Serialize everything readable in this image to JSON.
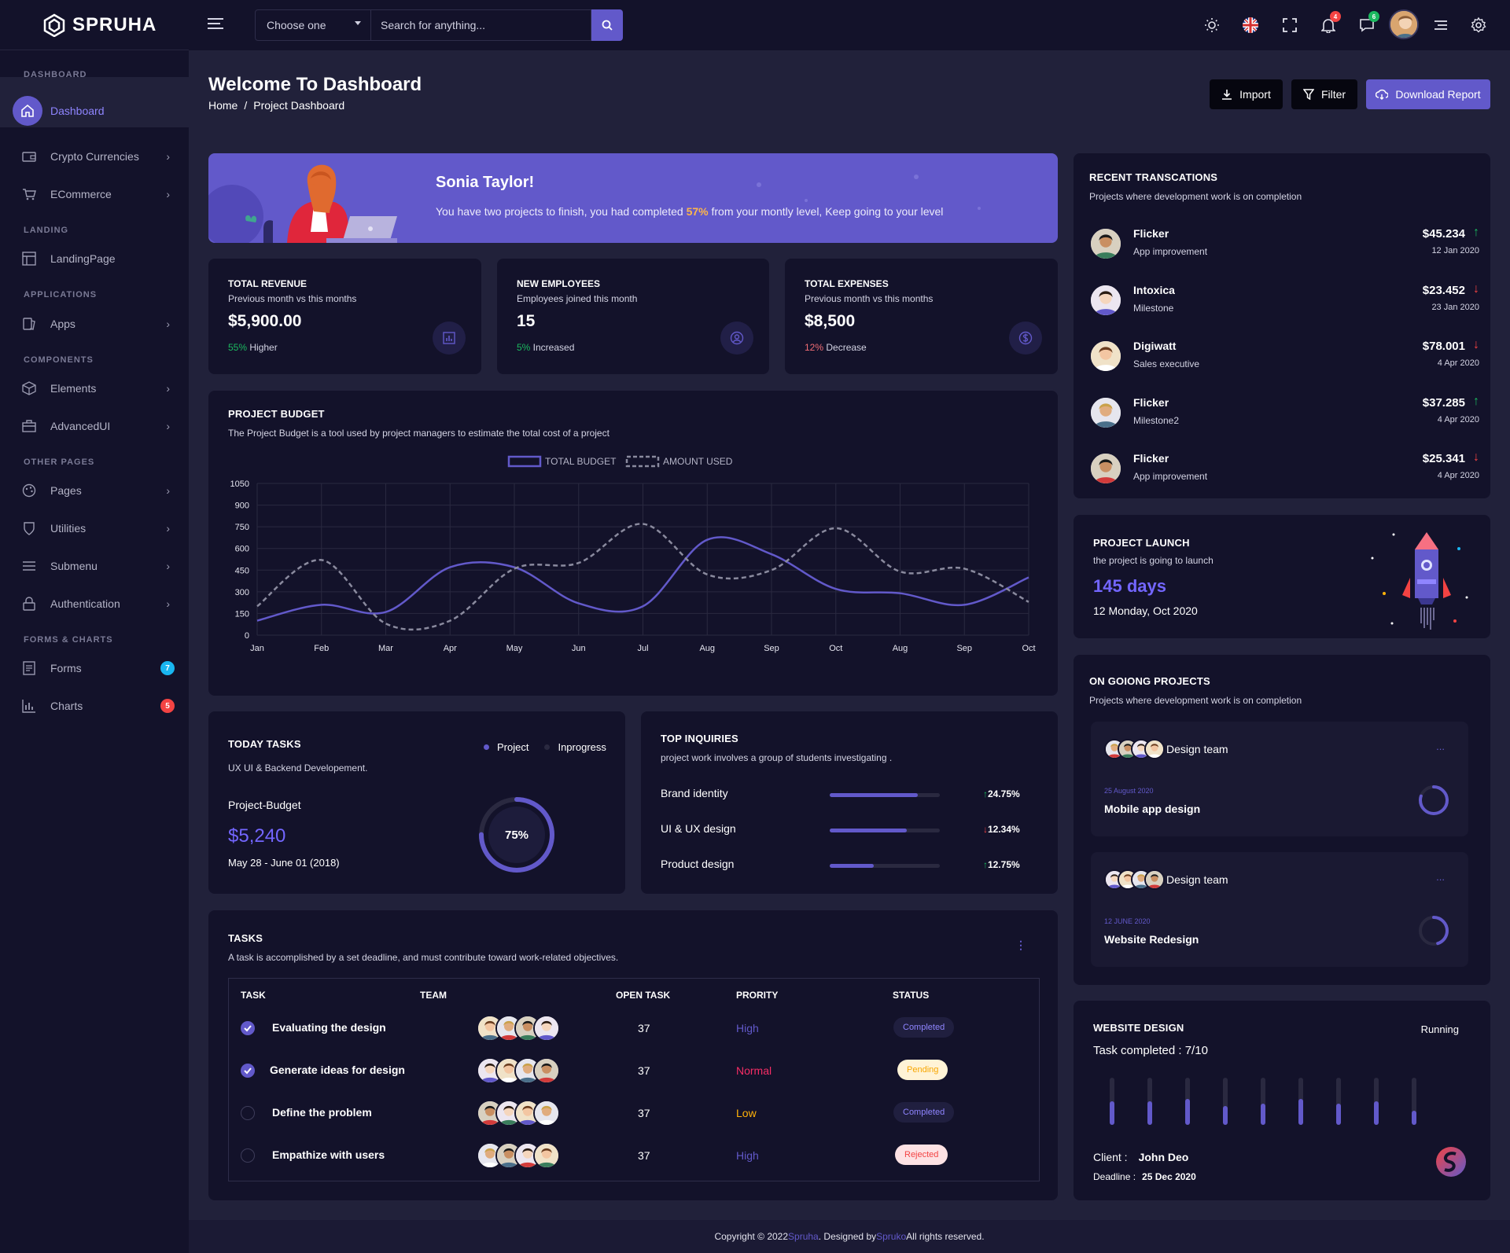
{
  "brand": {
    "name": "SPRUHA"
  },
  "sidebar": {
    "sections": [
      {
        "label": "DASHBOARD"
      },
      {
        "label": "LANDING"
      },
      {
        "label": "APPLICATIONS"
      },
      {
        "label": "COMPONENTS"
      },
      {
        "label": "OTHER PAGES"
      },
      {
        "label": "FORMS & CHARTS"
      }
    ],
    "active": "Dashboard",
    "items": [
      {
        "label": "Crypto Currencies",
        "icon": "wallet-icon"
      },
      {
        "label": "ECommerce",
        "icon": "cart-icon"
      },
      {
        "label": "LandingPage",
        "icon": "layout-icon"
      },
      {
        "label": "Apps",
        "icon": "apps-icon"
      },
      {
        "label": "Elements",
        "icon": "box-icon"
      },
      {
        "label": "AdvancedUI",
        "icon": "briefcase-icon"
      },
      {
        "label": "Pages",
        "icon": "palette-icon"
      },
      {
        "label": "Utilities",
        "icon": "shield-icon"
      },
      {
        "label": "Submenu",
        "icon": "menu-icon"
      },
      {
        "label": "Authentication",
        "icon": "lock-icon"
      },
      {
        "label": "Forms",
        "icon": "document-icon",
        "badge": "7"
      },
      {
        "label": "Charts",
        "icon": "chart-icon",
        "badge": "5"
      }
    ]
  },
  "topbar": {
    "select_label": "Choose one",
    "search_placeholder": "Search for anything...",
    "notification_count": "4",
    "message_count": "6"
  },
  "header": {
    "title": "Welcome To Dashboard",
    "breadcrumb_home": "Home",
    "breadcrumb_sep": "/",
    "breadcrumb_current": "Project Dashboard",
    "import_label": "Import",
    "filter_label": "Filter",
    "download_label": "Download Report"
  },
  "banner": {
    "name": "Sonia Taylor!",
    "text_before": "You have two projects to finish, you had completed ",
    "percent": "57%",
    "text_after": " from your montly level, Keep going to your level"
  },
  "stats": [
    {
      "title": "TOTAL REVENUE",
      "sub": "Previous month vs this months",
      "value": "$5,900.00",
      "pct": "55%",
      "note": " Higher",
      "color": "#1bb95f"
    },
    {
      "title": "NEW EMPLOYEES",
      "sub": "Employees joined this month",
      "value": "15",
      "pct": "5%",
      "note": " Increased",
      "color": "#1bb95f"
    },
    {
      "title": "TOTAL EXPENSES",
      "sub": "Previous month vs this months",
      "value": "$8,500",
      "pct": "12%",
      "note": " Decrease",
      "color": "#f16d75"
    }
  ],
  "budget": {
    "title": "PROJECT BUDGET",
    "sub": "The Project Budget is a tool used by project managers to estimate the total cost of a project"
  },
  "chart_data": {
    "type": "line",
    "categories": [
      "Jan",
      "Feb",
      "Mar",
      "Apr",
      "May",
      "Jun",
      "Jul",
      "Aug",
      "Sep",
      "Oct",
      "Aug",
      "Sep",
      "Oct"
    ],
    "series": [
      {
        "name": "TOTAL BUDGET",
        "values": [
          100,
          210,
          160,
          470,
          470,
          220,
          200,
          660,
          560,
          320,
          290,
          210,
          400
        ],
        "color": "#6259ca",
        "dashed": false
      },
      {
        "name": "AMOUNT USED",
        "values": [
          200,
          520,
          80,
          100,
          460,
          500,
          770,
          420,
          450,
          740,
          440,
          460,
          230
        ],
        "color": "#8a8a9e",
        "dashed": true
      }
    ],
    "yticks": [
      "1050",
      "900",
      "750",
      "600",
      "450",
      "300",
      "150",
      "0"
    ],
    "ylim": [
      0,
      1050
    ],
    "grid": true,
    "legend": "top"
  },
  "today_tasks": {
    "title": "TODAY TASKS",
    "sub": "UX UI & Backend Developement.",
    "legend_project": "Project",
    "legend_inprogress": "Inprogress",
    "label": "Project-Budget",
    "value": "$5,240",
    "dates": "May 28 - June 01 (2018)",
    "progress_label": "75%",
    "progress": 0.75
  },
  "inquiries": {
    "title": "TOP INQUIRIES",
    "sub": "project work involves a group of students investigating .",
    "rows": [
      {
        "label": "Brand identity",
        "pct": "24.75%",
        "dir": "up",
        "fill": 0.8
      },
      {
        "label": "UI & UX design",
        "pct": "12.34%",
        "dir": "down",
        "fill": 0.7
      },
      {
        "label": "Product design",
        "pct": "12.75%",
        "dir": "up",
        "fill": 0.4
      }
    ]
  },
  "tasks": {
    "title": "TASKS",
    "sub": "A task is accomplished by a set deadline, and must contribute toward work-related objectives.",
    "headers": [
      "TASK",
      "TEAM",
      "OPEN TASK",
      "PRORITY",
      "STATUS"
    ],
    "rows": [
      {
        "task": "Evaluating the design",
        "open": "37",
        "priority": "High",
        "status": "Completed",
        "checked": true
      },
      {
        "task": "Generate ideas for design",
        "open": "37",
        "priority": "Normal",
        "status": "Pending",
        "checked": true
      },
      {
        "task": "Define the problem",
        "open": "37",
        "priority": "Low",
        "status": "Completed",
        "checked": false
      },
      {
        "task": "Empathize with users",
        "open": "37",
        "priority": "High",
        "status": "Rejected",
        "checked": false
      }
    ]
  },
  "transactions": {
    "title": "RECENT TRANSCATIONS",
    "sub": "Projects where development work is on completion",
    "rows": [
      {
        "name": "Flicker",
        "desc": "App improvement",
        "amount": "$45.234",
        "date": "12 Jan 2020",
        "dir": "up"
      },
      {
        "name": "Intoxica",
        "desc": "Milestone",
        "amount": "$23.452",
        "date": "23 Jan 2020",
        "dir": "down"
      },
      {
        "name": "Digiwatt",
        "desc": "Sales executive",
        "amount": "$78.001",
        "date": "4 Apr 2020",
        "dir": "down"
      },
      {
        "name": "Flicker",
        "desc": "Milestone2",
        "amount": "$37.285",
        "date": "4 Apr 2020",
        "dir": "up"
      },
      {
        "name": "Flicker",
        "desc": "App improvement",
        "amount": "$25.341",
        "date": "4 Apr 2020",
        "dir": "down"
      }
    ]
  },
  "launch": {
    "title": "PROJECT LAUNCH",
    "sub": "the project is going to launch",
    "days": "145 days",
    "date": "12 Monday, Oct 2020"
  },
  "ongoing": {
    "title": "ON GOIONG PROJECTS",
    "sub": "Projects where development work is on completion",
    "cards": [
      {
        "team": "Design team",
        "date": "25 August 2020",
        "name": "Mobile app design",
        "menu": "...",
        "progress": 0.8
      },
      {
        "team": "Design team",
        "date": "12 JUNE 2020",
        "name": "Website Redesign",
        "menu": "...",
        "progress": 0.45
      }
    ]
  },
  "website": {
    "title": "WEBSITE DESIGN",
    "status": "Running",
    "completed": "Task completed : 7/10",
    "bars": [
      0.5,
      0.5,
      0.55,
      0.4,
      0.45,
      0.55,
      0.45,
      0.5,
      0.3,
      0.35
    ],
    "client_label": "Client :",
    "client": "John Deo",
    "deadline_label": "Deadline :",
    "deadline": "25 Dec 2020"
  },
  "footer": {
    "copyright": "Copyright © 2022 ",
    "brand": "Spruha",
    "designed": ". Designed by ",
    "designer": "Spruko",
    "rights": " All rights reserved."
  }
}
